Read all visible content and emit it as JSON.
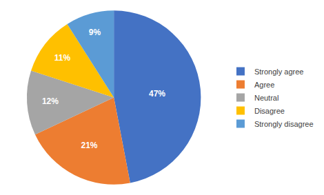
{
  "chart_data": {
    "type": "pie",
    "categories": [
      "Strongly agree",
      "Agree",
      "Neutral",
      "Disagree",
      "Strongly disagree"
    ],
    "values": [
      47,
      21,
      12,
      11,
      9
    ],
    "value_labels": [
      "47%",
      "21%",
      "12%",
      "11%",
      "9%"
    ],
    "colors": [
      "#4472c4",
      "#ed7d31",
      "#a5a5a5",
      "#ffc000",
      "#5b9bd5"
    ],
    "data_labels": true,
    "legend": "right"
  }
}
